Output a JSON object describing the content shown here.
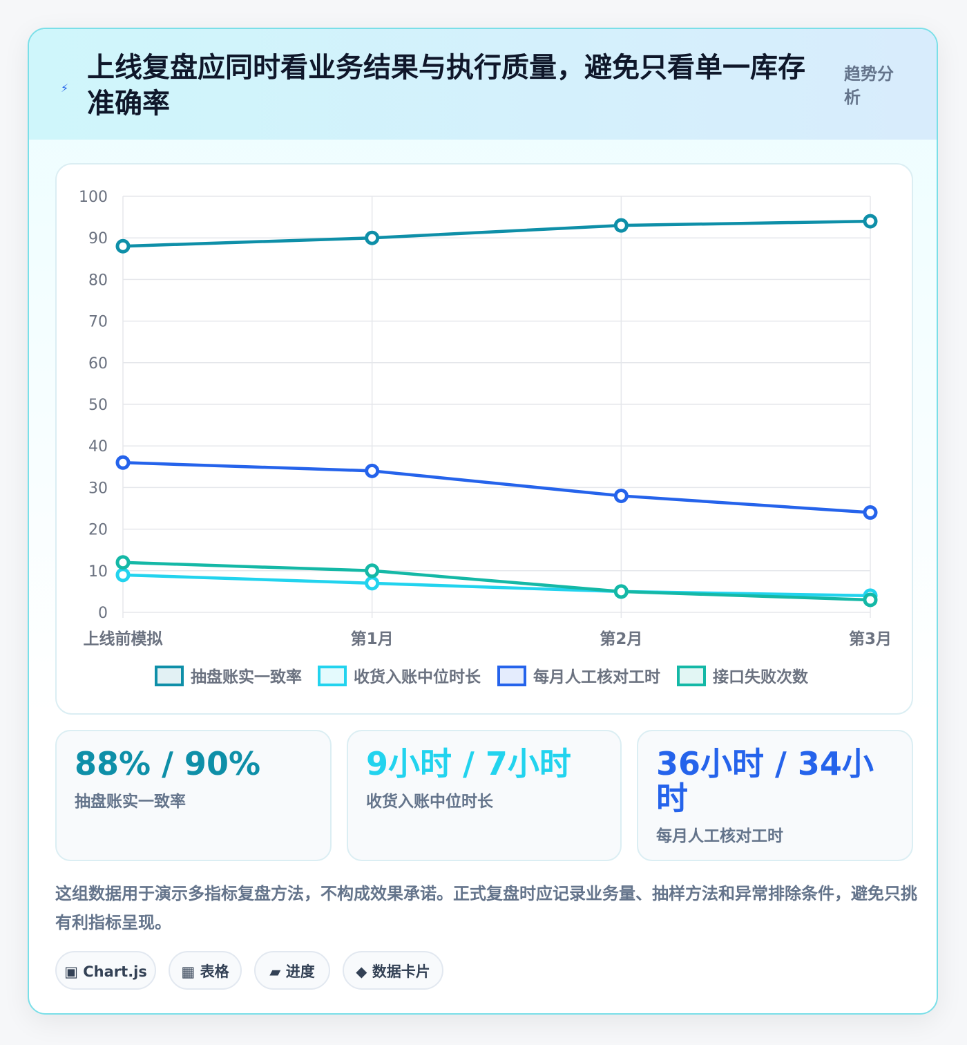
{
  "header": {
    "icon": "lightning-bolt-icon",
    "title": "上线复盘应同时看业务结果与执行质量，避免只看单一库存准确率",
    "tag": "趋势分析"
  },
  "chart_data": {
    "type": "line",
    "categories": [
      "上线前模拟",
      "第1月",
      "第2月",
      "第3月"
    ],
    "ylim": [
      0,
      100
    ],
    "yticks": [
      0,
      10,
      20,
      30,
      40,
      50,
      60,
      70,
      80,
      90,
      100
    ],
    "grid": true,
    "legend_position": "bottom",
    "series": [
      {
        "name": "抽盘账实一致率",
        "values": [
          88,
          90,
          93,
          94
        ],
        "color": "#0e8fa8"
      },
      {
        "name": "收货入账中位时长",
        "values": [
          9,
          7,
          5,
          4
        ],
        "color": "#22d3ee"
      },
      {
        "name": "每月人工核对工时",
        "values": [
          36,
          34,
          28,
          24
        ],
        "color": "#2563eb"
      },
      {
        "name": "接口失败次数",
        "values": [
          12,
          10,
          5,
          3
        ],
        "color": "#14b8a6"
      }
    ]
  },
  "kpis": [
    {
      "value": "88% / 90%",
      "label": "抽盘账实一致率",
      "color": "#0e8fa8"
    },
    {
      "value": "9小时 / 7小时",
      "label": "收货入账中位时长",
      "color": "#22d3ee"
    },
    {
      "value": "36小时 / 34小时",
      "label": "每月人工核对工时",
      "color": "#2563eb"
    }
  ],
  "note": "这组数据用于演示多指标复盘方法，不构成效果承诺。正式复盘时应记录业务量、抽样方法和异常排除条件，避免只挑有利指标呈现。",
  "chips": [
    {
      "icon": "▣",
      "label": "Chart.js"
    },
    {
      "icon": "▦",
      "label": "表格"
    },
    {
      "icon": "▰",
      "label": "进度"
    },
    {
      "icon": "◆",
      "label": "数据卡片"
    }
  ]
}
